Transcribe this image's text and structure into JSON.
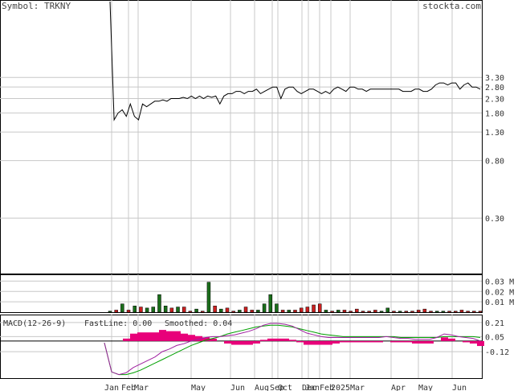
{
  "header": {
    "symbol_label": "Symbol: TRKNY",
    "site": "stockta.com"
  },
  "macd": {
    "title": "MACD(12-26-9)",
    "fast": "FastLine: 0.00",
    "smooth": "Smoothed: 0.04",
    "fast_color": "#a020a0",
    "smooth_color": "#00a000"
  },
  "colors": {
    "price_line": "#000000",
    "vol_up": "#1a6e1a",
    "vol_down": "#cc2020",
    "hist": "#e8007a",
    "grid": "#c8c8c8"
  },
  "x_labels": [
    "Jan",
    "Feb",
    "Mar",
    "May",
    "Jun",
    "Aug",
    "Sep",
    "Oct",
    "Dec",
    "Jan",
    "Feb",
    "2025",
    "Mar",
    "Apr",
    "May",
    "Jun"
  ],
  "chart_data": {
    "type": "line",
    "title": "",
    "price_axis": {
      "scale": "log",
      "ticks": [
        3.3,
        2.8,
        2.3,
        1.8,
        1.3,
        0.8,
        0.3
      ]
    },
    "volume_axis": {
      "ticks": [
        "0.03 M",
        "0.02 M",
        "0.01 M"
      ]
    },
    "macd_axis": {
      "ticks": [
        0.21,
        0.05,
        -0.12
      ]
    },
    "x_ticks": [
      "Jan",
      "Feb",
      "Mar",
      "May",
      "Jun",
      "Aug",
      "Sep",
      "Oct",
      "Dec",
      "Jan",
      "Feb",
      "2025",
      "Mar",
      "Apr",
      "May",
      "Jun"
    ],
    "price_series": [
      12,
      1.6,
      1.8,
      1.9,
      1.7,
      2.1,
      1.7,
      1.6,
      2.1,
      2.0,
      2.1,
      2.2,
      2.2,
      2.25,
      2.2,
      2.3,
      2.3,
      2.3,
      2.35,
      2.3,
      2.4,
      2.3,
      2.4,
      2.3,
      2.4,
      2.35,
      2.4,
      2.1,
      2.4,
      2.5,
      2.5,
      2.6,
      2.6,
      2.5,
      2.6,
      2.6,
      2.7,
      2.5,
      2.6,
      2.7,
      2.8,
      2.8,
      2.3,
      2.7,
      2.8,
      2.8,
      2.6,
      2.5,
      2.6,
      2.7,
      2.7,
      2.6,
      2.5,
      2.6,
      2.5,
      2.7,
      2.8,
      2.7,
      2.6,
      2.8,
      2.8,
      2.7,
      2.7,
      2.6,
      2.7,
      2.7,
      2.7,
      2.7,
      2.7,
      2.7,
      2.7,
      2.7,
      2.6,
      2.6,
      2.6,
      2.7,
      2.7,
      2.6,
      2.6,
      2.7,
      2.9,
      3.0,
      3.0,
      2.9,
      3.0,
      3.0,
      2.7,
      2.9,
      3.0,
      2.8,
      2.8,
      2.7
    ],
    "volume_series": [
      0.001,
      0.002,
      0.008,
      0.002,
      0.006,
      0.005,
      0.004,
      0.005,
      0.017,
      0.006,
      0.004,
      0.005,
      0.005,
      0.001,
      0.003,
      0.001,
      0.029,
      0.006,
      0.003,
      0.004,
      0.001,
      0.002,
      0.005,
      0.002,
      0.002,
      0.008,
      0.017,
      0.008,
      0.002,
      0.002,
      0.002,
      0.004,
      0.005,
      0.007,
      0.008,
      0.002,
      0.001,
      0.002,
      0.002,
      0.001,
      0.003,
      0.001,
      0.001,
      0.002,
      0.001,
      0.004,
      0.001,
      0.001,
      0.001,
      0.001,
      0.002,
      0.003,
      0.001,
      0.001,
      0.001,
      0.001,
      0.001,
      0.002,
      0.001,
      0.001,
      0.001
    ],
    "volume_up": [
      true,
      false,
      true,
      false,
      true,
      false,
      true,
      true,
      true,
      true,
      false,
      true,
      false,
      false,
      true,
      false,
      true,
      false,
      true,
      false,
      false,
      true,
      false,
      false,
      true,
      true,
      true,
      true,
      false,
      true,
      false,
      false,
      false,
      false,
      false,
      true,
      false,
      true,
      false,
      false,
      false,
      false,
      false,
      false,
      true,
      true,
      false,
      true,
      false,
      false,
      false,
      false,
      false,
      true,
      true,
      false,
      false,
      false,
      false,
      false,
      false
    ],
    "macd_fast": [
      -0.02,
      -0.35,
      -0.38,
      -0.36,
      -0.3,
      -0.26,
      -0.22,
      -0.18,
      -0.12,
      -0.09,
      -0.05,
      -0.03,
      0.0,
      0.02,
      0.04,
      0.05,
      0.05,
      0.06,
      0.07,
      0.09,
      0.11,
      0.14,
      0.18,
      0.2,
      0.2,
      0.19,
      0.17,
      0.13,
      0.09,
      0.07,
      0.05,
      0.04,
      0.04,
      0.04,
      0.04,
      0.04,
      0.04,
      0.04,
      0.04,
      0.05,
      0.04,
      0.03,
      0.03,
      0.02,
      0.02,
      0.02,
      0.04,
      0.08,
      0.07,
      0.05,
      0.04,
      0.03,
      0.0
    ],
    "macd_smooth": [
      -0.02,
      -0.35,
      -0.38,
      -0.38,
      -0.36,
      -0.33,
      -0.29,
      -0.25,
      -0.21,
      -0.17,
      -0.13,
      -0.09,
      -0.05,
      -0.02,
      0.01,
      0.03,
      0.05,
      0.08,
      0.1,
      0.12,
      0.14,
      0.16,
      0.17,
      0.18,
      0.18,
      0.17,
      0.16,
      0.14,
      0.12,
      0.1,
      0.08,
      0.07,
      0.06,
      0.05,
      0.05,
      0.05,
      0.05,
      0.05,
      0.05,
      0.05,
      0.05,
      0.04,
      0.04,
      0.04,
      0.04,
      0.04,
      0.04,
      0.05,
      0.05,
      0.05,
      0.05,
      0.05,
      0.04
    ]
  }
}
